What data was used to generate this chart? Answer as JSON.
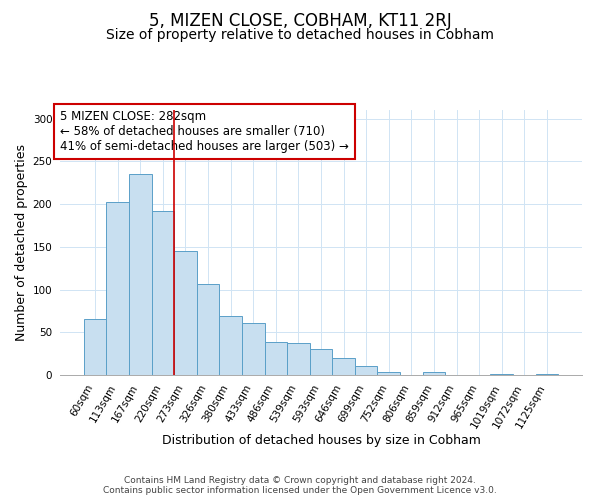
{
  "title": "5, MIZEN CLOSE, COBHAM, KT11 2RJ",
  "subtitle": "Size of property relative to detached houses in Cobham",
  "xlabel": "Distribution of detached houses by size in Cobham",
  "ylabel": "Number of detached properties",
  "bar_labels": [
    "60sqm",
    "113sqm",
    "167sqm",
    "220sqm",
    "273sqm",
    "326sqm",
    "380sqm",
    "433sqm",
    "486sqm",
    "539sqm",
    "593sqm",
    "646sqm",
    "699sqm",
    "752sqm",
    "806sqm",
    "859sqm",
    "912sqm",
    "965sqm",
    "1019sqm",
    "1072sqm",
    "1125sqm"
  ],
  "bar_heights": [
    65,
    202,
    235,
    192,
    145,
    107,
    69,
    61,
    39,
    37,
    31,
    20,
    10,
    4,
    0,
    4,
    0,
    0,
    1,
    0,
    1
  ],
  "bar_color": "#c8dff0",
  "bar_edge_color": "#5a9fc8",
  "ylim": [
    0,
    310
  ],
  "yticks": [
    0,
    50,
    100,
    150,
    200,
    250,
    300
  ],
  "vline_color": "#cc0000",
  "vline_x": 3.5,
  "annotation_text": "5 MIZEN CLOSE: 282sqm\n← 58% of detached houses are smaller (710)\n41% of semi-detached houses are larger (503) →",
  "annotation_box_color": "#ffffff",
  "annotation_box_edge_color": "#cc0000",
  "footer_line1": "Contains HM Land Registry data © Crown copyright and database right 2024.",
  "footer_line2": "Contains public sector information licensed under the Open Government Licence v3.0.",
  "background_color": "#ffffff",
  "grid_color": "#d0e4f4",
  "title_fontsize": 12,
  "subtitle_fontsize": 10,
  "axis_label_fontsize": 9,
  "tick_fontsize": 7.5,
  "annotation_fontsize": 8.5,
  "footer_fontsize": 6.5
}
